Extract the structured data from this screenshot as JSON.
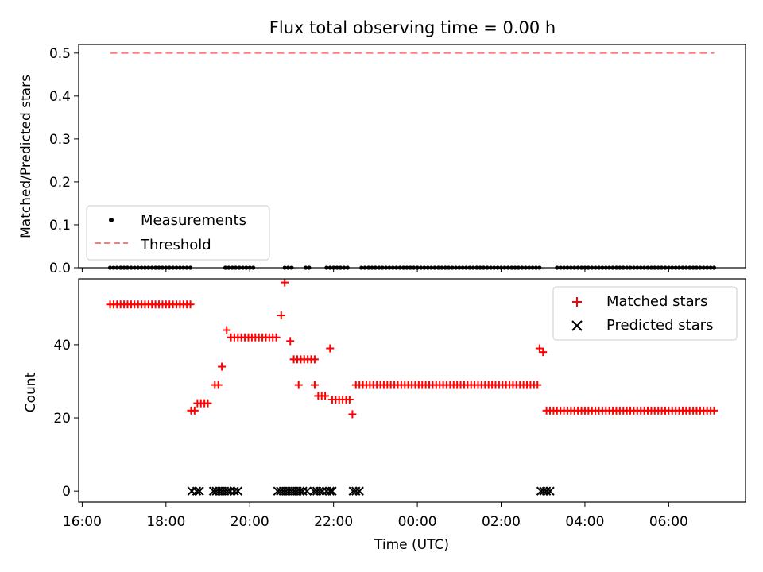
{
  "chart_data": [
    {
      "type": "scatter",
      "title": "Flux total observing time = 0.00 h",
      "xlabel": "",
      "ylabel": "Matched/Predicted stars",
      "xlim": [
        "15:55",
        "07:50"
      ],
      "ylim": [
        0,
        0.52
      ],
      "yticks": [
        0.0,
        0.1,
        0.2,
        0.3,
        0.4,
        0.5
      ],
      "ytick_labels": [
        "0.0",
        "0.1",
        "0.2",
        "0.3",
        "0.4",
        "0.5"
      ],
      "legend": {
        "placement": "lower-left",
        "entries": [
          "Measurements",
          "Threshold"
        ]
      },
      "series": [
        {
          "name": "Measurements",
          "marker": "dot",
          "color": "#000000",
          "segments": [
            {
              "x_start": "16:40",
              "x_end": "18:35",
              "y": 0.0
            },
            {
              "x_start": "19:25",
              "x_end": "20:05",
              "y": 0.0
            },
            {
              "x_start": "20:50",
              "x_end": "21:00",
              "y": 0.0
            },
            {
              "x_start": "21:20",
              "x_end": "21:25",
              "y": 0.0
            },
            {
              "x_start": "21:50",
              "x_end": "22:20",
              "y": 0.0
            },
            {
              "x_start": "22:40",
              "x_end": "02:55",
              "y": 0.0
            },
            {
              "x_start": "03:20",
              "x_end": "07:05",
              "y": 0.0
            }
          ]
        },
        {
          "name": "Threshold",
          "style": "dashed",
          "color": "#ff7f7f",
          "x": [
            "16:40",
            "07:05"
          ],
          "y": [
            0.5,
            0.5
          ]
        }
      ]
    },
    {
      "type": "scatter",
      "title": "",
      "xlabel": "Time (UTC)",
      "ylabel": "Count",
      "xlim": [
        "15:55",
        "07:50"
      ],
      "ylim": [
        -3,
        58
      ],
      "yticks": [
        0,
        20,
        40
      ],
      "ytick_labels": [
        "0",
        "20",
        "40"
      ],
      "xticks": [
        "16:00",
        "18:00",
        "20:00",
        "22:00",
        "00:00",
        "02:00",
        "04:00",
        "06:00"
      ],
      "xtick_labels": [
        "16:00",
        "18:00",
        "20:00",
        "22:00",
        "00:00",
        "02:00",
        "04:00",
        "06:00"
      ],
      "legend": {
        "placement": "upper-right",
        "entries": [
          "Matched stars",
          "Predicted stars"
        ]
      },
      "series": [
        {
          "name": "Matched stars",
          "marker": "plus",
          "color": "#ff0000",
          "runs": [
            {
              "x_start": "16:40",
              "x_end": "18:35",
              "y": 51
            },
            {
              "x_start": "18:36",
              "x_end": "18:42",
              "y": 22
            },
            {
              "x_start": "18:45",
              "x_end": "19:03",
              "y": 24
            },
            {
              "x_start": "19:10",
              "x_end": "19:18",
              "y": 29
            },
            {
              "x_start": "19:20",
              "x_end": "19:20",
              "y": 34
            },
            {
              "x_start": "19:27",
              "x_end": "19:27",
              "y": 44
            },
            {
              "x_start": "19:33",
              "x_end": "20:40",
              "y": 42
            },
            {
              "x_start": "20:45",
              "x_end": "20:45",
              "y": 48
            },
            {
              "x_start": "20:50",
              "x_end": "20:50",
              "y": 57
            },
            {
              "x_start": "20:58",
              "x_end": "20:58",
              "y": 41
            },
            {
              "x_start": "21:03",
              "x_end": "21:35",
              "y": 36
            },
            {
              "x_start": "21:10",
              "x_end": "21:10",
              "y": 29
            },
            {
              "x_start": "21:33",
              "x_end": "21:33",
              "y": 29
            },
            {
              "x_start": "21:38",
              "x_end": "21:52",
              "y": 26
            },
            {
              "x_start": "21:55",
              "x_end": "21:55",
              "y": 39
            },
            {
              "x_start": "21:58",
              "x_end": "22:23",
              "y": 25
            },
            {
              "x_start": "22:27",
              "x_end": "22:27",
              "y": 21
            },
            {
              "x_start": "22:32",
              "x_end": "02:53",
              "y": 29
            },
            {
              "x_start": "02:55",
              "x_end": "02:55",
              "y": 39
            },
            {
              "x_start": "03:00",
              "x_end": "03:00",
              "y": 38
            },
            {
              "x_start": "03:05",
              "x_end": "07:05",
              "y": 22
            }
          ]
        },
        {
          "name": "Predicted stars",
          "marker": "x",
          "color": "#000000",
          "x": [
            "18:37",
            "18:44",
            "18:48",
            "19:08",
            "19:12",
            "19:16",
            "19:20",
            "19:24",
            "19:28",
            "19:32",
            "19:38",
            "19:43",
            "20:40",
            "20:44",
            "20:48",
            "20:52",
            "20:56",
            "21:00",
            "21:04",
            "21:08",
            "21:12",
            "21:16",
            "21:22",
            "21:32",
            "21:36",
            "21:40",
            "21:44",
            "21:50",
            "21:55",
            "21:58",
            "22:28",
            "22:32",
            "22:37",
            "02:57",
            "03:01",
            "03:05",
            "03:10"
          ],
          "y": [
            0,
            0,
            0,
            0,
            0,
            0,
            0,
            0,
            0,
            0,
            0,
            0,
            0,
            0,
            0,
            0,
            0,
            0,
            0,
            0,
            0,
            0,
            0,
            0,
            0,
            0,
            0,
            0,
            0,
            0,
            0,
            0,
            0,
            0,
            0,
            0,
            0
          ]
        }
      ]
    }
  ]
}
